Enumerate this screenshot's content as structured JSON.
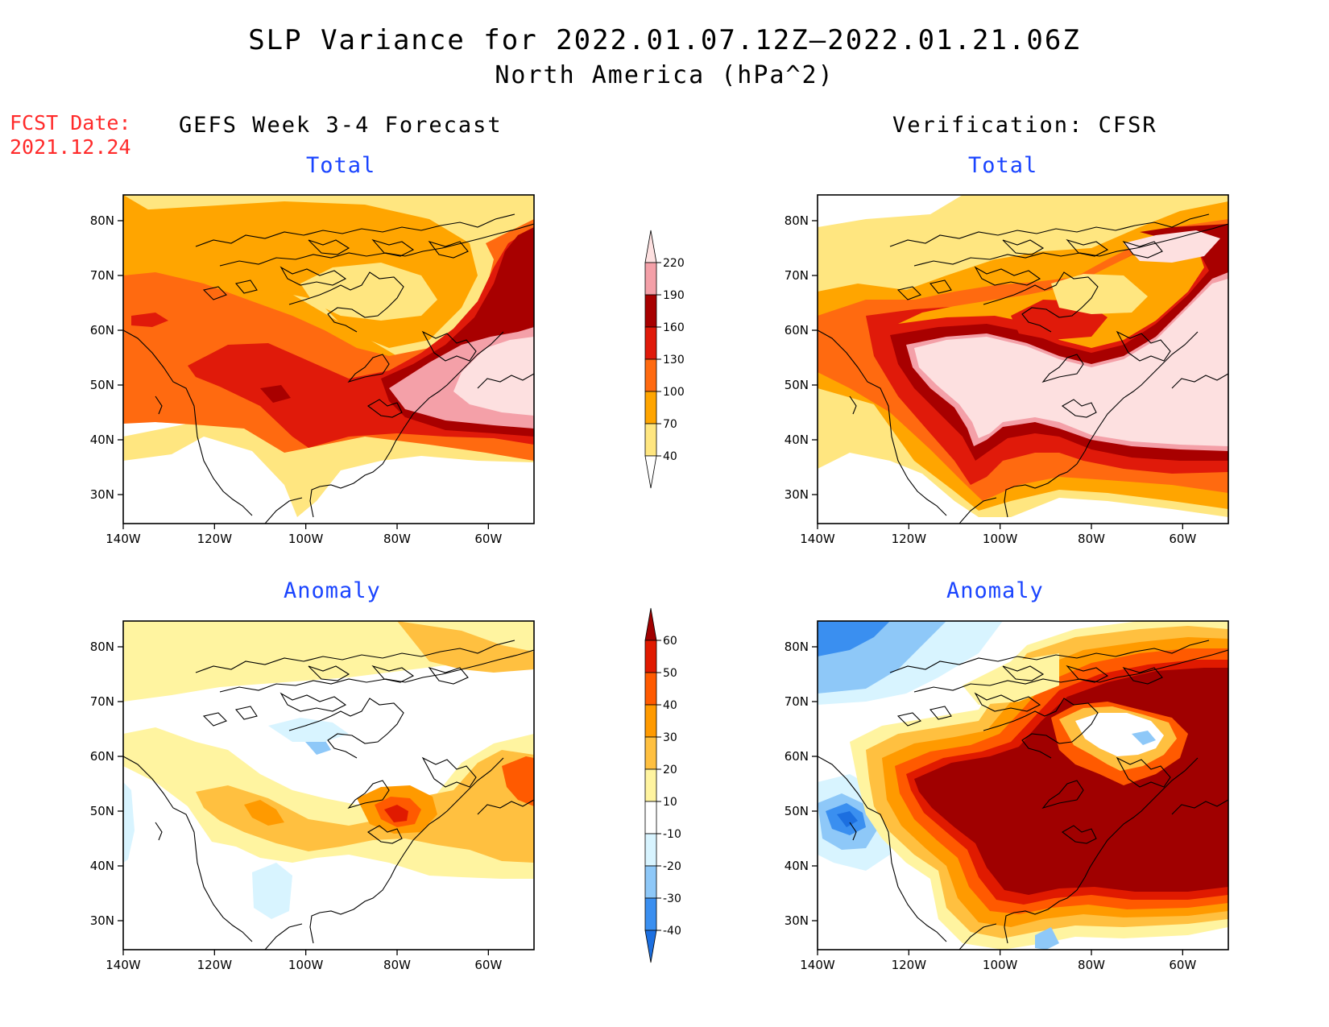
{
  "title": "SLP Variance for 2022.01.07.12Z—2022.01.21.06Z",
  "subtitle": "North America (hPa^2)",
  "fcst": {
    "line1": "FCST Date:",
    "line2": "2021.12.24"
  },
  "columns": {
    "left": "GEFS Week 3-4 Forecast",
    "right": "Verification: CFSR"
  },
  "panels": [
    {
      "id": "fcst-total",
      "title": "Total"
    },
    {
      "id": "cfsr-total",
      "title": "Total"
    },
    {
      "id": "fcst-anomaly",
      "title": "Anomaly"
    },
    {
      "id": "cfsr-anomaly",
      "title": "Anomaly"
    }
  ],
  "axes": {
    "lon_ticks": [
      "140W",
      "120W",
      "100W",
      "80W",
      "60W"
    ],
    "lat_ticks": [
      "80N",
      "70N",
      "60N",
      "50N",
      "40N",
      "30N"
    ]
  },
  "total_colorbar": {
    "levels": [
      "40",
      "70",
      "100",
      "130",
      "160",
      "190",
      "220"
    ],
    "colors": [
      "#ffe680",
      "#ffa500",
      "#ff6a10",
      "#e01a0a",
      "#a80000",
      "#f4a0a8",
      "#fde0e0"
    ]
  },
  "anomaly_colorbar": {
    "levels": [
      "-40",
      "-30",
      "-20",
      "-10",
      "10",
      "20",
      "30",
      "40",
      "50",
      "60"
    ],
    "colors": [
      "#1c6fe0",
      "#3a8ff0",
      "#8ec8f8",
      "#d8f4ff",
      "#ffffff",
      "#fff4a0",
      "#ffc040",
      "#ff9a00",
      "#ff5a00",
      "#e01a00",
      "#a00000"
    ]
  },
  "chart_data": [
    {
      "type": "heatmap",
      "panel": "fcst-total",
      "title": "Total",
      "xlim": [
        -140,
        -50
      ],
      "ylim": [
        25,
        85
      ]
    },
    {
      "type": "heatmap",
      "panel": "cfsr-total",
      "title": "Total",
      "xlim": [
        -140,
        -50
      ],
      "ylim": [
        25,
        85
      ]
    },
    {
      "type": "heatmap",
      "panel": "fcst-anomaly",
      "title": "Anomaly",
      "xlim": [
        -140,
        -50
      ],
      "ylim": [
        25,
        85
      ]
    },
    {
      "type": "heatmap",
      "panel": "cfsr-anomaly",
      "title": "Anomaly",
      "xlim": [
        -140,
        -50
      ],
      "ylim": [
        25,
        85
      ]
    }
  ]
}
